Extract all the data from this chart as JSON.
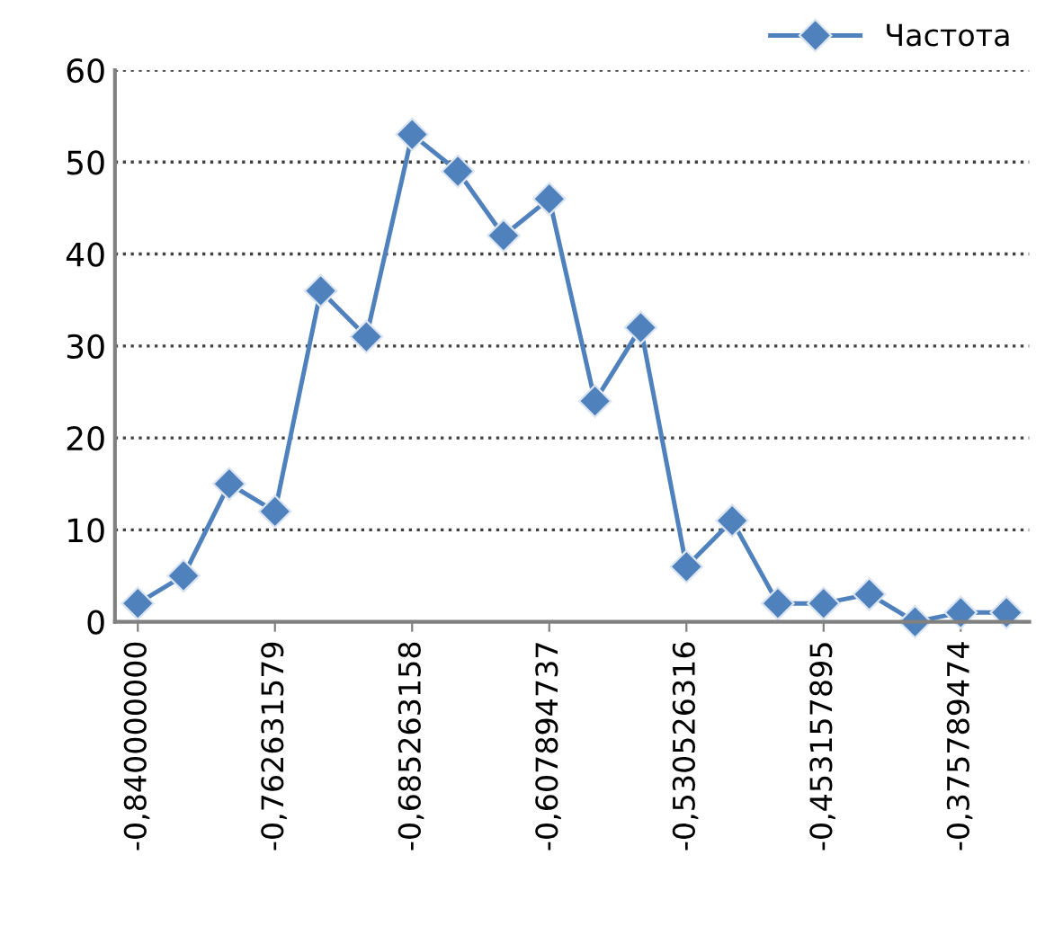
{
  "chart_data": {
    "type": "line",
    "categories": [
      "-0,840000000",
      null,
      null,
      "-0,762631579",
      null,
      null,
      "-0,685263158",
      null,
      null,
      "-0,607894737",
      null,
      null,
      "-0,530526316",
      null,
      null,
      "-0,453157895",
      null,
      null,
      "-0,375789474",
      null
    ],
    "series": [
      {
        "name": "Частота",
        "color": "#4f81bd",
        "values": [
          2,
          5,
          15,
          12,
          36,
          31,
          53,
          49,
          42,
          46,
          24,
          32,
          6,
          11,
          2,
          2,
          3,
          0,
          1,
          1
        ]
      }
    ],
    "ylim": [
      0,
      60
    ],
    "yticks": [
      0,
      10,
      20,
      30,
      40,
      50,
      60
    ],
    "grid": "y",
    "legend": "top right",
    "marker": "diamond",
    "line_style": "solid"
  }
}
